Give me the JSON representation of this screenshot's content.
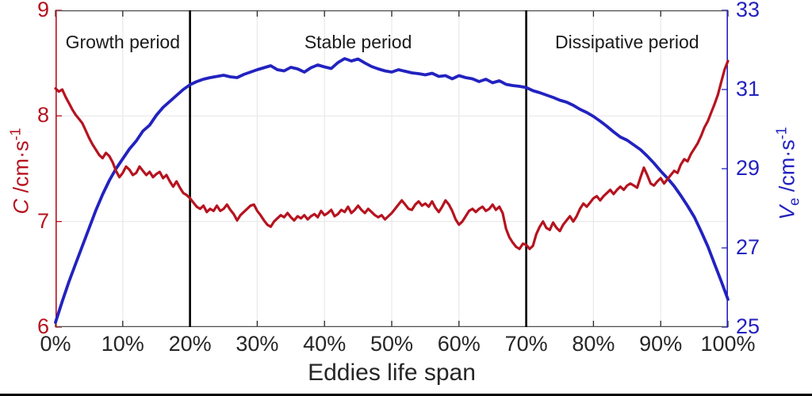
{
  "chart_data": {
    "type": "line",
    "xlabel": "Eddies life span",
    "x_range_pct": [
      0,
      100
    ],
    "x_ticks": [
      {
        "p": 0,
        "label": "0%"
      },
      {
        "p": 10,
        "label": "10%"
      },
      {
        "p": 20,
        "label": "20%"
      },
      {
        "p": 30,
        "label": "30%"
      },
      {
        "p": 40,
        "label": "40%"
      },
      {
        "p": 50,
        "label": "50%"
      },
      {
        "p": 60,
        "label": "60%"
      },
      {
        "p": 70,
        "label": "70%"
      },
      {
        "p": 80,
        "label": "80%"
      },
      {
        "p": 90,
        "label": "90%"
      },
      {
        "p": 100,
        "label": "100%"
      }
    ],
    "grid": {
      "vertical_pct": [
        10,
        20,
        30,
        40,
        50,
        60,
        70,
        80,
        90
      ],
      "horizontal_left_values": [
        7,
        8
      ],
      "color": "#e8e8e8"
    },
    "dividers": {
      "positions_pct": [
        20,
        70
      ],
      "color": "#000000"
    },
    "annotations": [
      {
        "text": "Growth period",
        "x_pct": 10
      },
      {
        "text": "Stable period",
        "x_pct": 45
      },
      {
        "text": "Dissipative period",
        "x_pct": 85
      }
    ],
    "axes": {
      "x_color": "#262626",
      "frame_color": "#4d4d4d",
      "left": {
        "symbol": "C",
        "unit": " /cm·s",
        "sup": "-1",
        "color": "#b6131f",
        "range": [
          6,
          9
        ],
        "ticks": [
          {
            "v": 6,
            "label": "6"
          },
          {
            "v": 7,
            "label": "7"
          },
          {
            "v": 8,
            "label": "8"
          },
          {
            "v": 9,
            "label": "9"
          }
        ]
      },
      "right": {
        "symbol": "V",
        "sub": "e",
        "unit": " /cm·s",
        "sup": "-1",
        "color": "#2222c0",
        "range": [
          25,
          33
        ],
        "ticks": [
          {
            "v": 25,
            "label": "25"
          },
          {
            "v": 27,
            "label": "27"
          },
          {
            "v": 29,
            "label": "29"
          },
          {
            "v": 31,
            "label": "31"
          },
          {
            "v": 33,
            "label": "33"
          }
        ]
      }
    },
    "series": [
      {
        "name": "Ve",
        "axis": "right",
        "color": "#2222c0",
        "stroke_width": 3.8,
        "x_start_pct": 0,
        "x_step_pct": 1,
        "values": [
          25.12,
          25.65,
          26.15,
          26.6,
          27.05,
          27.5,
          27.95,
          28.35,
          28.7,
          29.0,
          29.25,
          29.5,
          29.7,
          29.95,
          30.1,
          30.35,
          30.55,
          30.7,
          30.85,
          31.0,
          31.12,
          31.2,
          31.26,
          31.3,
          31.33,
          31.36,
          31.32,
          31.3,
          31.38,
          31.44,
          31.5,
          31.55,
          31.6,
          31.5,
          31.47,
          31.56,
          31.52,
          31.44,
          31.55,
          31.62,
          31.57,
          31.53,
          31.68,
          31.78,
          31.72,
          31.77,
          31.67,
          31.58,
          31.52,
          31.47,
          31.44,
          31.5,
          31.46,
          31.42,
          31.4,
          31.37,
          31.41,
          31.33,
          31.35,
          31.27,
          31.35,
          31.3,
          31.27,
          31.2,
          31.26,
          31.17,
          31.22,
          31.13,
          31.1,
          31.08,
          31.05,
          30.97,
          30.92,
          30.86,
          30.8,
          30.73,
          30.68,
          30.6,
          30.5,
          30.42,
          30.32,
          30.2,
          30.07,
          29.93,
          29.8,
          29.72,
          29.6,
          29.48,
          29.32,
          29.14,
          28.94,
          28.76,
          28.56,
          28.32,
          28.06,
          27.78,
          27.42,
          27.04,
          26.6,
          26.16,
          25.7
        ]
      },
      {
        "name": "C",
        "axis": "left",
        "color": "#b6131f",
        "stroke_width": 3.2,
        "x_start_pct": 0,
        "x_step_pct": 0.5,
        "values": [
          8.26,
          8.23,
          8.25,
          8.18,
          8.12,
          8.06,
          8.01,
          7.97,
          7.93,
          7.86,
          7.79,
          7.73,
          7.68,
          7.63,
          7.6,
          7.65,
          7.62,
          7.56,
          7.48,
          7.42,
          7.46,
          7.52,
          7.49,
          7.44,
          7.46,
          7.52,
          7.48,
          7.44,
          7.47,
          7.42,
          7.45,
          7.47,
          7.41,
          7.44,
          7.38,
          7.33,
          7.38,
          7.32,
          7.27,
          7.25,
          7.22,
          7.18,
          7.14,
          7.12,
          7.15,
          7.09,
          7.12,
          7.1,
          7.15,
          7.1,
          7.12,
          7.16,
          7.11,
          7.07,
          7.01,
          7.06,
          7.09,
          7.12,
          7.15,
          7.16,
          7.1,
          7.06,
          7.01,
          6.97,
          6.95,
          7.0,
          7.03,
          7.06,
          7.04,
          7.08,
          7.04,
          7.01,
          7.05,
          7.03,
          7.06,
          7.02,
          7.05,
          7.07,
          7.04,
          7.1,
          7.06,
          7.08,
          7.11,
          7.05,
          7.07,
          7.11,
          7.09,
          7.14,
          7.08,
          7.11,
          7.15,
          7.11,
          7.08,
          7.12,
          7.09,
          7.06,
          7.04,
          7.06,
          7.02,
          7.05,
          7.08,
          7.12,
          7.16,
          7.2,
          7.16,
          7.12,
          7.11,
          7.16,
          7.19,
          7.15,
          7.17,
          7.14,
          7.19,
          7.13,
          7.09,
          7.14,
          7.2,
          7.16,
          7.1,
          7.02,
          6.97,
          7.0,
          7.05,
          7.1,
          7.12,
          7.09,
          7.12,
          7.14,
          7.1,
          7.12,
          7.16,
          7.11,
          7.14,
          7.08,
          6.93,
          6.85,
          6.8,
          6.76,
          6.74,
          6.79,
          6.78,
          6.74,
          6.77,
          6.88,
          6.95,
          7.0,
          6.94,
          6.92,
          6.99,
          6.94,
          6.91,
          6.97,
          7.01,
          7.05,
          7.0,
          7.05,
          7.12,
          7.17,
          7.14,
          7.18,
          7.22,
          7.24,
          7.2,
          7.24,
          7.27,
          7.3,
          7.26,
          7.3,
          7.33,
          7.3,
          7.34,
          7.36,
          7.34,
          7.32,
          7.42,
          7.51,
          7.44,
          7.36,
          7.34,
          7.38,
          7.41,
          7.36,
          7.4,
          7.44,
          7.48,
          7.46,
          7.54,
          7.59,
          7.57,
          7.64,
          7.69,
          7.74,
          7.81,
          7.89,
          7.95,
          8.03,
          8.11,
          8.2,
          8.32,
          8.44,
          8.52
        ]
      }
    ]
  }
}
